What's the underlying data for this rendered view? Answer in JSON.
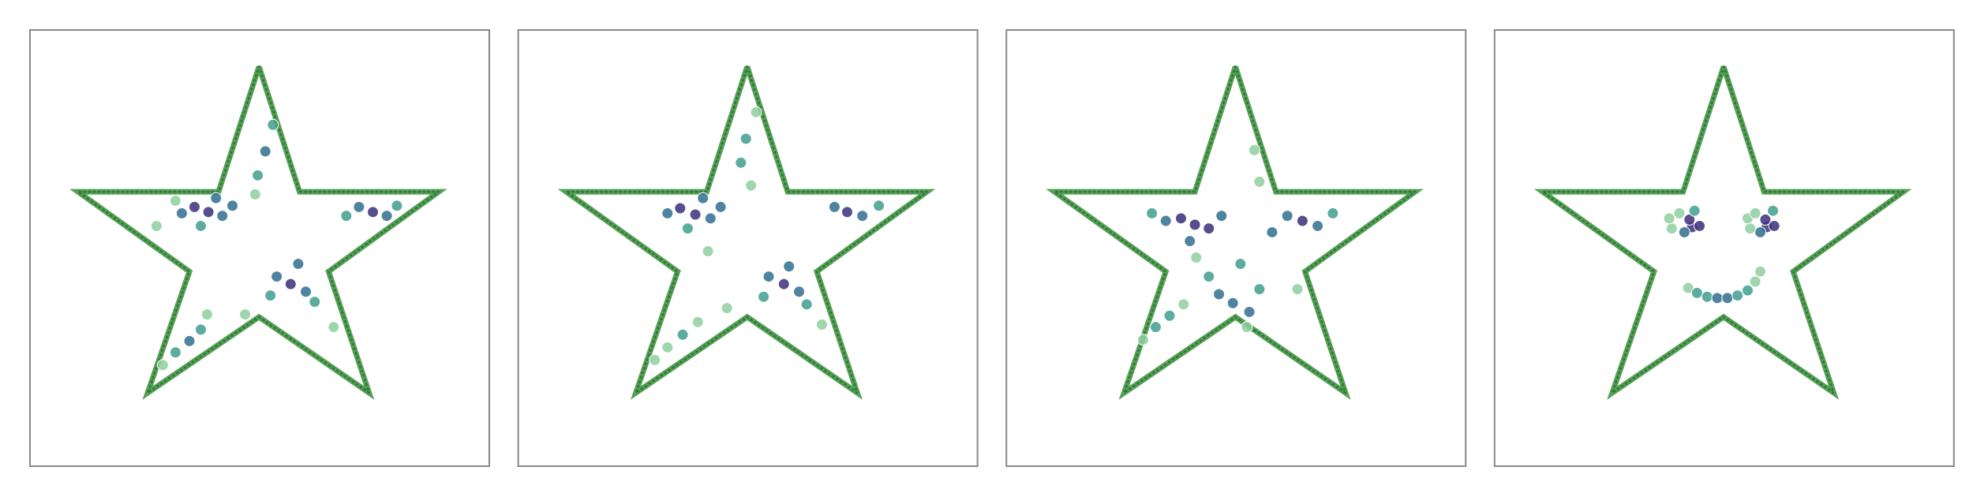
{
  "chart_data": [
    {
      "type": "scatter",
      "xlim": [
        0,
        363
      ],
      "ylim": [
        0,
        345
      ],
      "outline": {
        "color": "#56a056",
        "x": [
          181,
          213,
          323,
          236,
          268,
          181,
          93,
          126,
          38,
          149,
          181
        ],
        "y": [
          316,
          217,
          217,
          154,
          58,
          118,
          58,
          154,
          217,
          217,
          316
        ]
      },
      "x": [
        141,
        130,
        152,
        120,
        160,
        135,
        115,
        147,
        271,
        260,
        282,
        290,
        250,
        206,
        195,
        218,
        225,
        190,
        212,
        186,
        180,
        192,
        178,
        126,
        115,
        135,
        105,
        140,
        170,
        240,
        100
      ],
      "y": [
        201,
        205,
        198,
        200,
        206,
        190,
        210,
        212,
        201,
        205,
        198,
        206,
        198,
        144,
        150,
        138,
        130,
        135,
        160,
        249,
        230,
        270,
        215,
        99,
        90,
        108,
        80,
        120,
        120,
        110,
        190
      ],
      "colors": [
        "#3b2f7a",
        "#3b2f7a",
        "#2f6f8f",
        "#2f6f8f",
        "#2f6f8f",
        "#3f9f8f",
        "#8fcf9f",
        "#2f6f8f",
        "#3b2f7a",
        "#2f6f8f",
        "#2f6f8f",
        "#3f9f8f",
        "#3f9f8f",
        "#3b2f7a",
        "#2f6f8f",
        "#2f6f8f",
        "#3f9f8f",
        "#3f9f8f",
        "#2f6f8f",
        "#2f6f8f",
        "#3f9f8f",
        "#3f9f8f",
        "#8fcf9f",
        "#2f6f8f",
        "#3f9f8f",
        "#3f9f8f",
        "#8fcf9f",
        "#8fcf9f",
        "#8fcf9f",
        "#8fcf9f",
        "#8fcf9f"
      ]
    },
    {
      "type": "scatter",
      "xlim": [
        0,
        363
      ],
      "ylim": [
        0,
        345
      ],
      "outline": {
        "color": "#56a056",
        "x": [
          181,
          213,
          323,
          236,
          268,
          181,
          93,
          126,
          38,
          149,
          181
        ],
        "y": [
          316,
          217,
          217,
          154,
          58,
          118,
          58,
          154,
          217,
          217,
          316
        ]
      },
      "x": [
        140,
        128,
        152,
        118,
        160,
        134,
        146,
        260,
        250,
        272,
        285,
        210,
        198,
        222,
        228,
        194,
        214,
        180,
        176,
        188,
        184,
        130,
        118,
        142,
        108,
        165,
        240,
        150
      ],
      "y": [
        199,
        204,
        196,
        200,
        205,
        188,
        212,
        201,
        205,
        198,
        206,
        144,
        150,
        138,
        128,
        134,
        158,
        259,
        240,
        280,
        222,
        104,
        94,
        114,
        84,
        125,
        112,
        170
      ],
      "colors": [
        "#3b2f7a",
        "#3b2f7a",
        "#2f6f8f",
        "#2f6f8f",
        "#2f6f8f",
        "#3f9f8f",
        "#2f6f8f",
        "#3b2f7a",
        "#2f6f8f",
        "#2f6f8f",
        "#3f9f8f",
        "#3b2f7a",
        "#2f6f8f",
        "#2f6f8f",
        "#3f9f8f",
        "#3f9f8f",
        "#2f6f8f",
        "#3f9f8f",
        "#3f9f8f",
        "#8fcf9f",
        "#8fcf9f",
        "#3f9f8f",
        "#8fcf9f",
        "#8fcf9f",
        "#8fcf9f",
        "#8fcf9f",
        "#8fcf9f",
        "#8fcf9f"
      ]
    },
    {
      "type": "scatter",
      "xlim": [
        0,
        363
      ],
      "ylim": [
        0,
        345
      ],
      "outline": {
        "color": "#56a056",
        "x": [
          181,
          213,
          323,
          236,
          268,
          181,
          93,
          126,
          38,
          149,
          181
        ],
        "y": [
          316,
          217,
          217,
          154,
          58,
          118,
          58,
          154,
          217,
          217,
          316
        ]
      },
      "x": [
        149,
        138,
        160,
        126,
        170,
        145,
        115,
        234,
        222,
        246,
        258,
        210,
        179,
        168,
        192,
        200,
        160,
        185,
        129,
        118,
        140,
        108,
        196,
        200,
        230,
        190,
        150
      ],
      "y": [
        191,
        196,
        188,
        194,
        198,
        178,
        200,
        194,
        198,
        190,
        200,
        185,
        129,
        136,
        122,
        140,
        150,
        160,
        119,
        110,
        128,
        100,
        250,
        225,
        140,
        110,
        165
      ],
      "colors": [
        "#3b2f7a",
        "#3b2f7a",
        "#3b2f7a",
        "#2f6f8f",
        "#2f6f8f",
        "#2f6f8f",
        "#3f9f8f",
        "#3b2f7a",
        "#2f6f8f",
        "#2f6f8f",
        "#3f9f8f",
        "#2f6f8f",
        "#2f6f8f",
        "#2f6f8f",
        "#2f6f8f",
        "#3f9f8f",
        "#3f9f8f",
        "#3f9f8f",
        "#3f9f8f",
        "#3f9f8f",
        "#8fcf9f",
        "#8fcf9f",
        "#8fcf9f",
        "#8fcf9f",
        "#8fcf9f",
        "#8fcf9f",
        "#8fcf9f"
      ]
    },
    {
      "type": "scatter",
      "xlim": [
        0,
        363
      ],
      "ylim": [
        0,
        345
      ],
      "outline": {
        "color": "#56a056",
        "x": [
          181,
          213,
          323,
          236,
          268,
          181,
          93,
          126,
          38,
          149,
          181
        ],
        "y": [
          316,
          217,
          217,
          154,
          58,
          118,
          58,
          154,
          217,
          217,
          316
        ]
      },
      "x": [
        156,
        150,
        162,
        154,
        140,
        138,
        146,
        158,
        215,
        210,
        221,
        214,
        202,
        200,
        206,
        220,
        153,
        160,
        168,
        176,
        184,
        192,
        200,
        206,
        210
      ],
      "y": [
        189,
        185,
        190,
        195,
        188,
        196,
        200,
        202,
        189,
        185,
        190,
        195,
        188,
        196,
        200,
        202,
        141,
        137,
        134,
        133,
        133,
        135,
        139,
        146,
        154
      ],
      "colors": [
        "#3b2f7a",
        "#2f6f8f",
        "#3b2f7a",
        "#3b2f7a",
        "#8fcf9f",
        "#8fcf9f",
        "#8fcf9f",
        "#3f9f8f",
        "#3b2f7a",
        "#2f6f8f",
        "#3b2f7a",
        "#3b2f7a",
        "#8fcf9f",
        "#8fcf9f",
        "#8fcf9f",
        "#3f9f8f",
        "#8fcf9f",
        "#3f9f8f",
        "#3f9f8f",
        "#2f6f8f",
        "#2f6f8f",
        "#3f9f8f",
        "#3f9f8f",
        "#8fcf9f",
        "#8fcf9f"
      ]
    }
  ]
}
